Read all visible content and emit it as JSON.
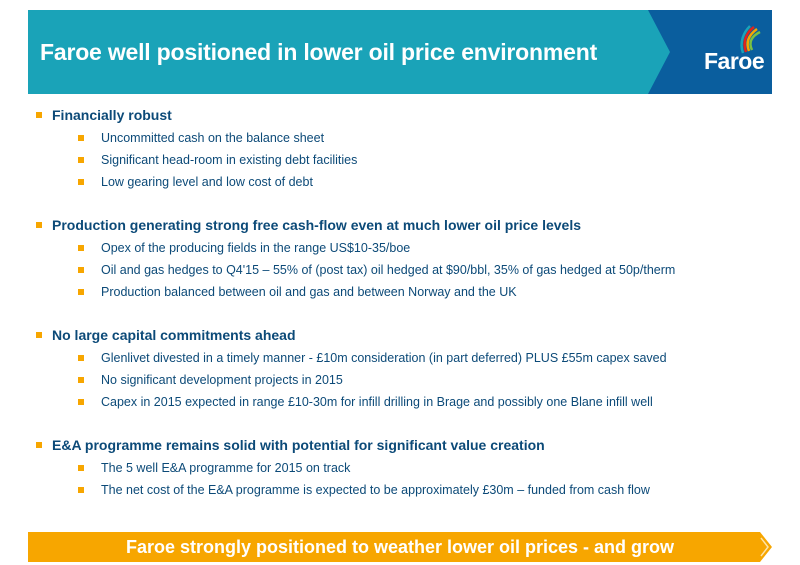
{
  "header": {
    "title": "Faroe well positioned in lower oil price environment",
    "logo_text": "Faroe"
  },
  "colors": {
    "header_teal": "#1aa3b8",
    "logo_blue": "#0a5e9e",
    "text_navy": "#0c4a78",
    "bullet_orange": "#f7a600"
  },
  "sections": [
    {
      "heading": "Financially robust",
      "items": [
        "Uncommitted cash on the balance sheet",
        "Significant head-room in existing debt facilities",
        "Low gearing level and low cost of debt"
      ]
    },
    {
      "heading": "Production generating strong free cash-flow even at much lower oil price levels",
      "items": [
        "Opex of the producing fields in the range US$10-35/boe",
        "Oil and gas hedges to Q4'15 – 55% of (post tax) oil hedged at $90/bbl, 35% of gas hedged at 50p/therm",
        "Production balanced between oil and gas and between Norway and the UK"
      ]
    },
    {
      "heading": "No large capital commitments ahead",
      "items": [
        "Glenlivet divested in a timely manner - £10m consideration (in part deferred) PLUS £55m capex saved",
        "No significant development projects in 2015",
        "Capex in 2015 expected in range £10-30m for infill drilling in Brage and possibly one Blane infill well"
      ]
    },
    {
      "heading": "E&A programme remains solid with potential for significant value creation",
      "items": [
        "The 5 well E&A programme for 2015 on track",
        "The net cost of the E&A programme is expected to be approximately £30m – funded from cash flow"
      ]
    }
  ],
  "footer": {
    "text": "Faroe strongly positioned to weather lower oil prices - and grow"
  }
}
